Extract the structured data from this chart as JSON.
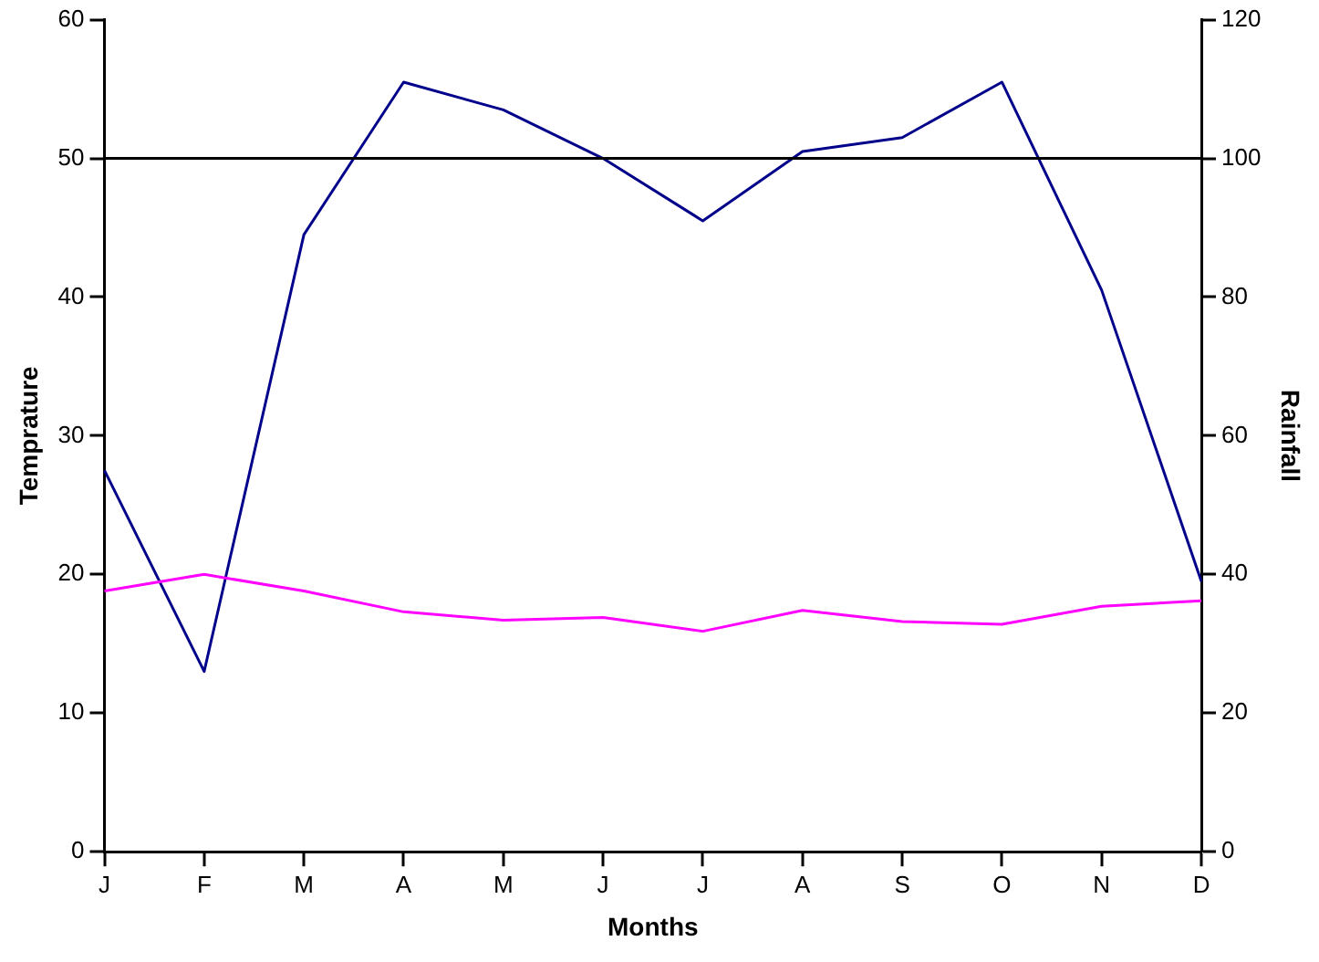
{
  "chart_data": {
    "type": "line",
    "xlabel": "Months",
    "ylabel": "Temprature",
    "y2label": "Rainfall",
    "categories": [
      "J",
      "F",
      "M",
      "A",
      "M",
      "J",
      "J",
      "A",
      "S",
      "O",
      "N",
      "D"
    ],
    "series": [
      {
        "type": "line",
        "color": "#ff00ff",
        "values": [
          18.8,
          20.0,
          18.8,
          17.3,
          16.7,
          16.9,
          15.9,
          17.4,
          16.6,
          16.4,
          17.7,
          18.1
        ]
      },
      {
        "type": "line",
        "axis": "y2",
        "color": "#00008b",
        "values": [
          55,
          26,
          89,
          111,
          107,
          100,
          91,
          101,
          103,
          111,
          81,
          39
        ]
      }
    ],
    "ylim": [
      0,
      60
    ],
    "yticks": [
      0,
      10,
      20,
      30,
      40,
      50,
      60
    ],
    "y2lim": [
      0,
      120
    ],
    "y2ticks": [
      0,
      20,
      40,
      60,
      80,
      100,
      120
    ],
    "ref_lines": [
      {
        "axis": "y2",
        "value": 100,
        "color": "#000000"
      }
    ],
    "grid": false,
    "legend": false,
    "marker": "none",
    "line_style": "solid"
  }
}
